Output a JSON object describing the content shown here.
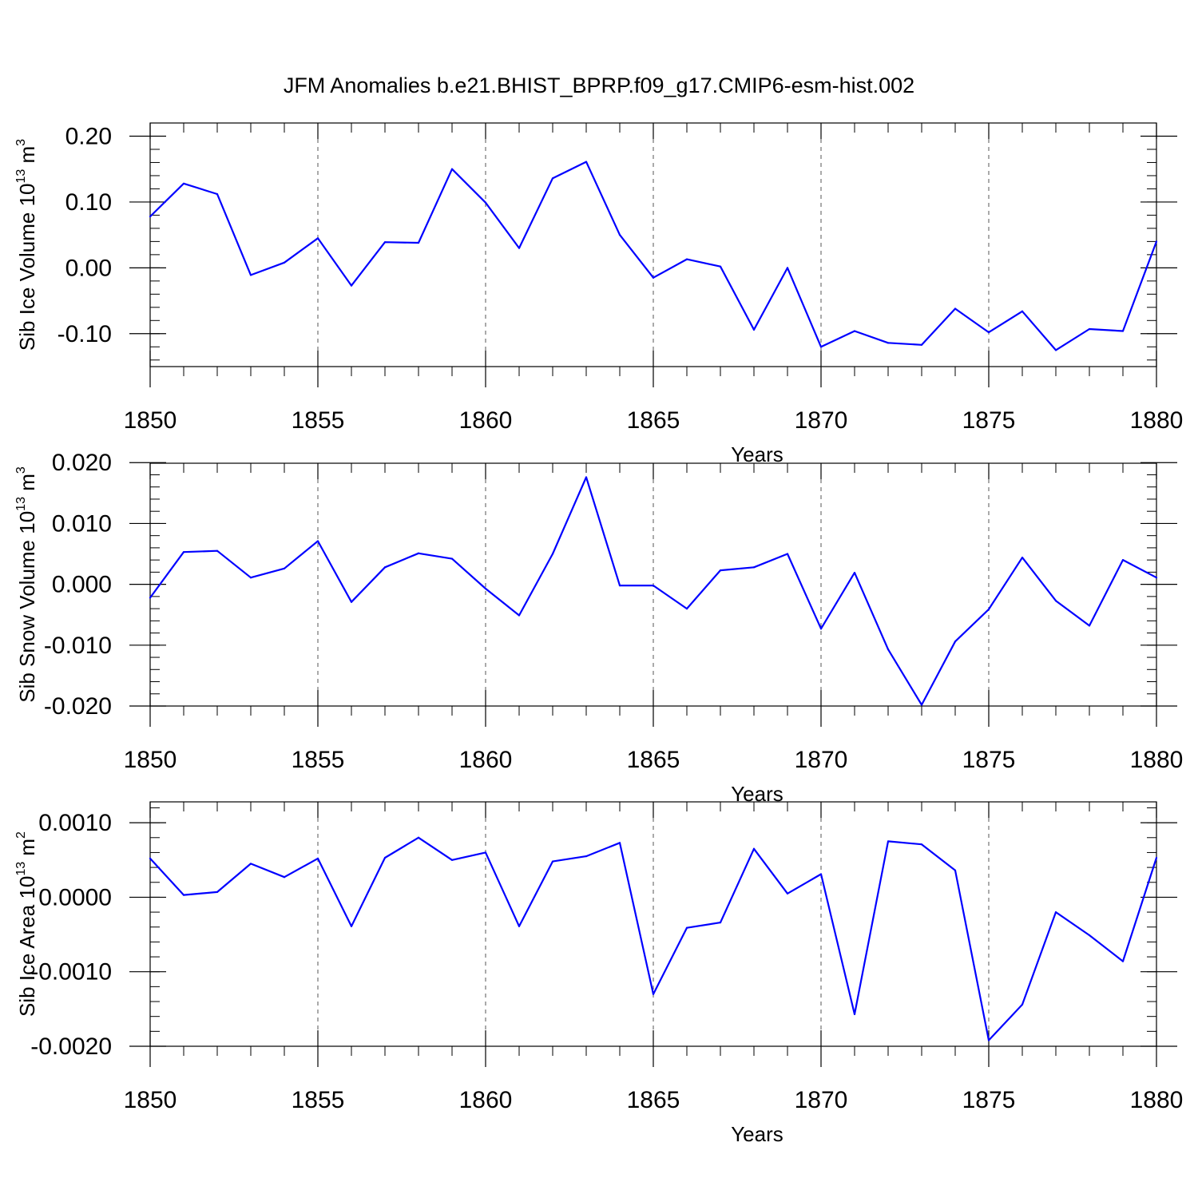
{
  "title": "JFM Anomalies b.e21.BHIST_BPRP.f09_g17.CMIP6-esm-hist.002",
  "colors": {
    "line": "#0000ff",
    "axis": "#000000",
    "grid": "#555555"
  },
  "chart_data": [
    {
      "type": "line",
      "title": "JFM Anomalies b.e21.BHIST_BPRP.f09_g17.CMIP6-esm-hist.002",
      "xlabel": "Years",
      "ylabel": "Sib Ice Volume 10",
      "ylabel_sup": "13",
      "ylabel_unit": " m",
      "ylabel_unit_sup": "3",
      "xlim": [
        1850,
        1880
      ],
      "ylim": [
        -0.15,
        0.22
      ],
      "yticks": [
        0.2,
        0.1,
        0.0,
        -0.1
      ],
      "ytick_labels": [
        "0.20",
        "0.10",
        "0.00",
        "-0.10"
      ],
      "yminor": 0.02,
      "xticks": [
        1850,
        1855,
        1860,
        1865,
        1870,
        1875,
        1880
      ],
      "xtick_labels": [
        "1850",
        "1855",
        "1860",
        "1865",
        "1870",
        "1875",
        "1880"
      ],
      "grid": "vertical-dashed",
      "x": [
        1850,
        1851,
        1852,
        1853,
        1854,
        1855,
        1856,
        1857,
        1858,
        1859,
        1860,
        1861,
        1862,
        1863,
        1864,
        1865,
        1866,
        1867,
        1868,
        1869,
        1870,
        1871,
        1872,
        1873,
        1874,
        1875,
        1876,
        1877,
        1878,
        1879,
        1880
      ],
      "values": [
        0.078,
        0.128,
        0.112,
        -0.011,
        0.008,
        0.045,
        -0.027,
        0.039,
        0.038,
        0.15,
        0.099,
        0.03,
        0.136,
        0.161,
        0.05,
        -0.015,
        0.013,
        0.002,
        -0.094,
        0.0,
        -0.12,
        -0.096,
        -0.114,
        -0.117,
        -0.062,
        -0.098,
        -0.066,
        -0.125,
        -0.093,
        -0.096,
        0.04
      ]
    },
    {
      "type": "line",
      "xlabel": "Years",
      "ylabel": "Sib Snow Volume 10",
      "ylabel_sup": "13",
      "ylabel_unit": " m",
      "ylabel_unit_sup": "3",
      "xlim": [
        1850,
        1880
      ],
      "ylim": [
        -0.02,
        0.0199
      ],
      "yticks": [
        0.02,
        0.01,
        0.0,
        -0.01,
        -0.02
      ],
      "ytick_labels": [
        "0.020",
        "0.010",
        "0.000",
        "-0.010",
        "-0.020"
      ],
      "yminor": 0.002,
      "xticks": [
        1850,
        1855,
        1860,
        1865,
        1870,
        1875,
        1880
      ],
      "xtick_labels": [
        "1850",
        "1855",
        "1860",
        "1865",
        "1870",
        "1875",
        "1880"
      ],
      "grid": "vertical-dashed",
      "x": [
        1850,
        1851,
        1852,
        1853,
        1854,
        1855,
        1856,
        1857,
        1858,
        1859,
        1860,
        1861,
        1862,
        1863,
        1864,
        1865,
        1866,
        1867,
        1868,
        1869,
        1870,
        1871,
        1872,
        1873,
        1874,
        1875,
        1876,
        1877,
        1878,
        1879,
        1880
      ],
      "values": [
        -0.0022,
        0.0053,
        0.0055,
        0.0011,
        0.0026,
        0.0071,
        -0.0029,
        0.0028,
        0.0051,
        0.0042,
        -0.0007,
        -0.0051,
        0.005,
        0.0176,
        -0.0002,
        -0.0002,
        -0.004,
        0.0023,
        0.0028,
        0.005,
        -0.0073,
        0.0019,
        -0.0107,
        -0.0198,
        -0.0094,
        -0.0041,
        0.0044,
        -0.0027,
        -0.0068,
        0.004,
        0.0011
      ]
    },
    {
      "type": "line",
      "xlabel": "Years",
      "ylabel": "Sib Ice Area 10",
      "ylabel_sup": "13",
      "ylabel_unit": " m",
      "ylabel_unit_sup": "2",
      "xlim": [
        1850,
        1880
      ],
      "ylim": [
        -0.002,
        0.00128
      ],
      "yticks": [
        0.001,
        0.0,
        -0.001,
        -0.002
      ],
      "ytick_labels": [
        "0.0010",
        "0.0000",
        "-0.0010",
        "-0.0020"
      ],
      "yminor": 0.0002,
      "xticks": [
        1850,
        1855,
        1860,
        1865,
        1870,
        1875,
        1880
      ],
      "xtick_labels": [
        "1850",
        "1855",
        "1860",
        "1865",
        "1870",
        "1875",
        "1880"
      ],
      "grid": "vertical-dashed",
      "x": [
        1850,
        1851,
        1852,
        1853,
        1854,
        1855,
        1856,
        1857,
        1858,
        1859,
        1860,
        1861,
        1862,
        1863,
        1864,
        1865,
        1866,
        1867,
        1868,
        1869,
        1870,
        1871,
        1872,
        1873,
        1874,
        1875,
        1876,
        1877,
        1878,
        1879,
        1880
      ],
      "values": [
        0.00052,
        3e-05,
        7e-05,
        0.00045,
        0.00027,
        0.00052,
        -0.00039,
        0.00053,
        0.0008,
        0.0005,
        0.0006,
        -0.00039,
        0.00048,
        0.00055,
        0.00073,
        -0.0013,
        -0.00041,
        -0.00034,
        0.00065,
        5e-05,
        0.00031,
        -0.00157,
        0.00075,
        0.00071,
        0.00036,
        -0.00192,
        -0.00144,
        -0.0002,
        -0.00051,
        -0.00086,
        0.00053
      ]
    }
  ]
}
